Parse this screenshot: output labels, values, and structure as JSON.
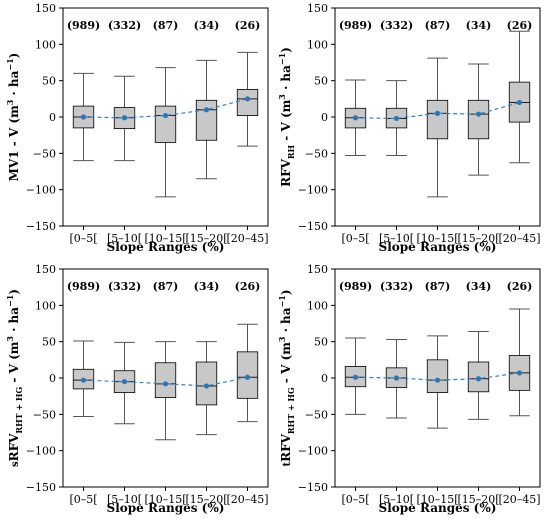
{
  "chart_data": [
    {
      "type": "boxplot",
      "panel": "top-left",
      "ylabel": {
        "main": "MV1 - V (m",
        "sup": "3",
        "mid": " · ha",
        "sup2": "−1",
        "end": ")"
      },
      "xlabel": "Slope Ranges (%)",
      "ylim": [
        -150,
        150
      ],
      "yticks": [
        -150,
        -100,
        -50,
        0,
        50,
        100,
        150
      ],
      "categories": [
        "[0–5[",
        "[5–10[",
        "[10–15[",
        "[15–20[",
        "[20–45]"
      ],
      "counts": [
        "(989)",
        "(332)",
        "(87)",
        "(34)",
        "(26)"
      ],
      "boxes": [
        {
          "whislo": -60,
          "q1": -15,
          "med": 0,
          "q3": 15,
          "whishi": 60,
          "mean": 0
        },
        {
          "whislo": -60,
          "q1": -16,
          "med": -1,
          "q3": 13,
          "whishi": 56,
          "mean": -1
        },
        {
          "whislo": -110,
          "q1": -35,
          "med": 2,
          "q3": 15,
          "whishi": 68,
          "mean": 2
        },
        {
          "whislo": -85,
          "q1": -32,
          "med": 10,
          "q3": 23,
          "whishi": 78,
          "mean": 10
        },
        {
          "whislo": -40,
          "q1": 2,
          "med": 25,
          "q3": 38,
          "whishi": 89,
          "mean": 25
        }
      ]
    },
    {
      "type": "boxplot",
      "panel": "top-right",
      "ylabel": {
        "main": "RFV",
        "sub": "RH",
        "mid": " - V (m",
        "sup": "3",
        "mid2": " · ha",
        "sup2": "−1",
        "end": ")"
      },
      "xlabel": "Slope Ranges (%)",
      "ylim": [
        -150,
        150
      ],
      "yticks": [
        -150,
        -100,
        -50,
        0,
        50,
        100,
        150
      ],
      "categories": [
        "[0–5[",
        "[5–10[",
        "[10–15[",
        "[15–20[",
        "[20–45]"
      ],
      "counts": [
        "(989)",
        "(332)",
        "(87)",
        "(34)",
        "(26)"
      ],
      "boxes": [
        {
          "whislo": -53,
          "q1": -15,
          "med": -1,
          "q3": 12,
          "whishi": 51,
          "mean": -1
        },
        {
          "whislo": -53,
          "q1": -15,
          "med": -2,
          "q3": 12,
          "whishi": 50,
          "mean": -2
        },
        {
          "whislo": -110,
          "q1": -30,
          "med": 5,
          "q3": 23,
          "whishi": 81,
          "mean": 5
        },
        {
          "whislo": -80,
          "q1": -30,
          "med": 4,
          "q3": 23,
          "whishi": 73,
          "mean": 4
        },
        {
          "whislo": -63,
          "q1": -7,
          "med": 20,
          "q3": 48,
          "whishi": 118,
          "mean": 20
        }
      ]
    },
    {
      "type": "boxplot",
      "panel": "bottom-left",
      "ylabel": {
        "prefix": "s",
        "main": "RFV",
        "sub": "RHT + HG",
        "mid": " - V (m",
        "sup": "3",
        "mid2": " · ha",
        "sup2": "−1",
        "end": ")"
      },
      "xlabel": "Slope Ranges (%)",
      "ylim": [
        -150,
        150
      ],
      "yticks": [
        -150,
        -100,
        -50,
        0,
        50,
        100,
        150
      ],
      "categories": [
        "[0–5[",
        "[5–10[",
        "[10–15[",
        "[15–20[",
        "[20–45]"
      ],
      "counts": [
        "(989)",
        "(332)",
        "(87)",
        "(34)",
        "(26)"
      ],
      "boxes": [
        {
          "whislo": -53,
          "q1": -15,
          "med": -3,
          "q3": 12,
          "whishi": 51,
          "mean": -3
        },
        {
          "whislo": -63,
          "q1": -20,
          "med": -5,
          "q3": 10,
          "whishi": 49,
          "mean": -5
        },
        {
          "whislo": -85,
          "q1": -27,
          "med": -8,
          "q3": 21,
          "whishi": 50,
          "mean": -8
        },
        {
          "whislo": -78,
          "q1": -37,
          "med": -11,
          "q3": 22,
          "whishi": 50,
          "mean": -11
        },
        {
          "whislo": -60,
          "q1": -28,
          "med": 1,
          "q3": 36,
          "whishi": 74,
          "mean": 1
        }
      ]
    },
    {
      "type": "boxplot",
      "panel": "bottom-right",
      "ylabel": {
        "prefix": "t",
        "main": "RFV",
        "sub": "RHT + HG",
        "mid": " - V (m",
        "sup": "3",
        "mid2": " · ha",
        "sup2": "−1",
        "end": ")"
      },
      "xlabel": "Slope Ranges (%)",
      "ylim": [
        -150,
        150
      ],
      "yticks": [
        -150,
        -100,
        -50,
        0,
        50,
        100,
        150
      ],
      "categories": [
        "[0–5[",
        "[5–10[",
        "[10–15[",
        "[15–20[",
        "[20–45]"
      ],
      "counts": [
        "(989)",
        "(332)",
        "(87)",
        "(34)",
        "(26)"
      ],
      "boxes": [
        {
          "whislo": -50,
          "q1": -12,
          "med": 1,
          "q3": 16,
          "whishi": 55,
          "mean": 1
        },
        {
          "whislo": -55,
          "q1": -13,
          "med": 0,
          "q3": 14,
          "whishi": 53,
          "mean": 0
        },
        {
          "whislo": -69,
          "q1": -20,
          "med": -3,
          "q3": 25,
          "whishi": 58,
          "mean": -3
        },
        {
          "whislo": -57,
          "q1": -19,
          "med": -1,
          "q3": 22,
          "whishi": 64,
          "mean": -1
        },
        {
          "whislo": -52,
          "q1": -17,
          "med": 7,
          "q3": 31,
          "whishi": 95,
          "mean": 7
        }
      ]
    }
  ],
  "style": {
    "box_fill": "#c8c8c8",
    "box_stroke": "#000000",
    "whisker_stroke": "#555555",
    "median_stroke": "#1f1f1f",
    "mean_color": "#2e75b6",
    "trend_color": "#3b82c4"
  }
}
